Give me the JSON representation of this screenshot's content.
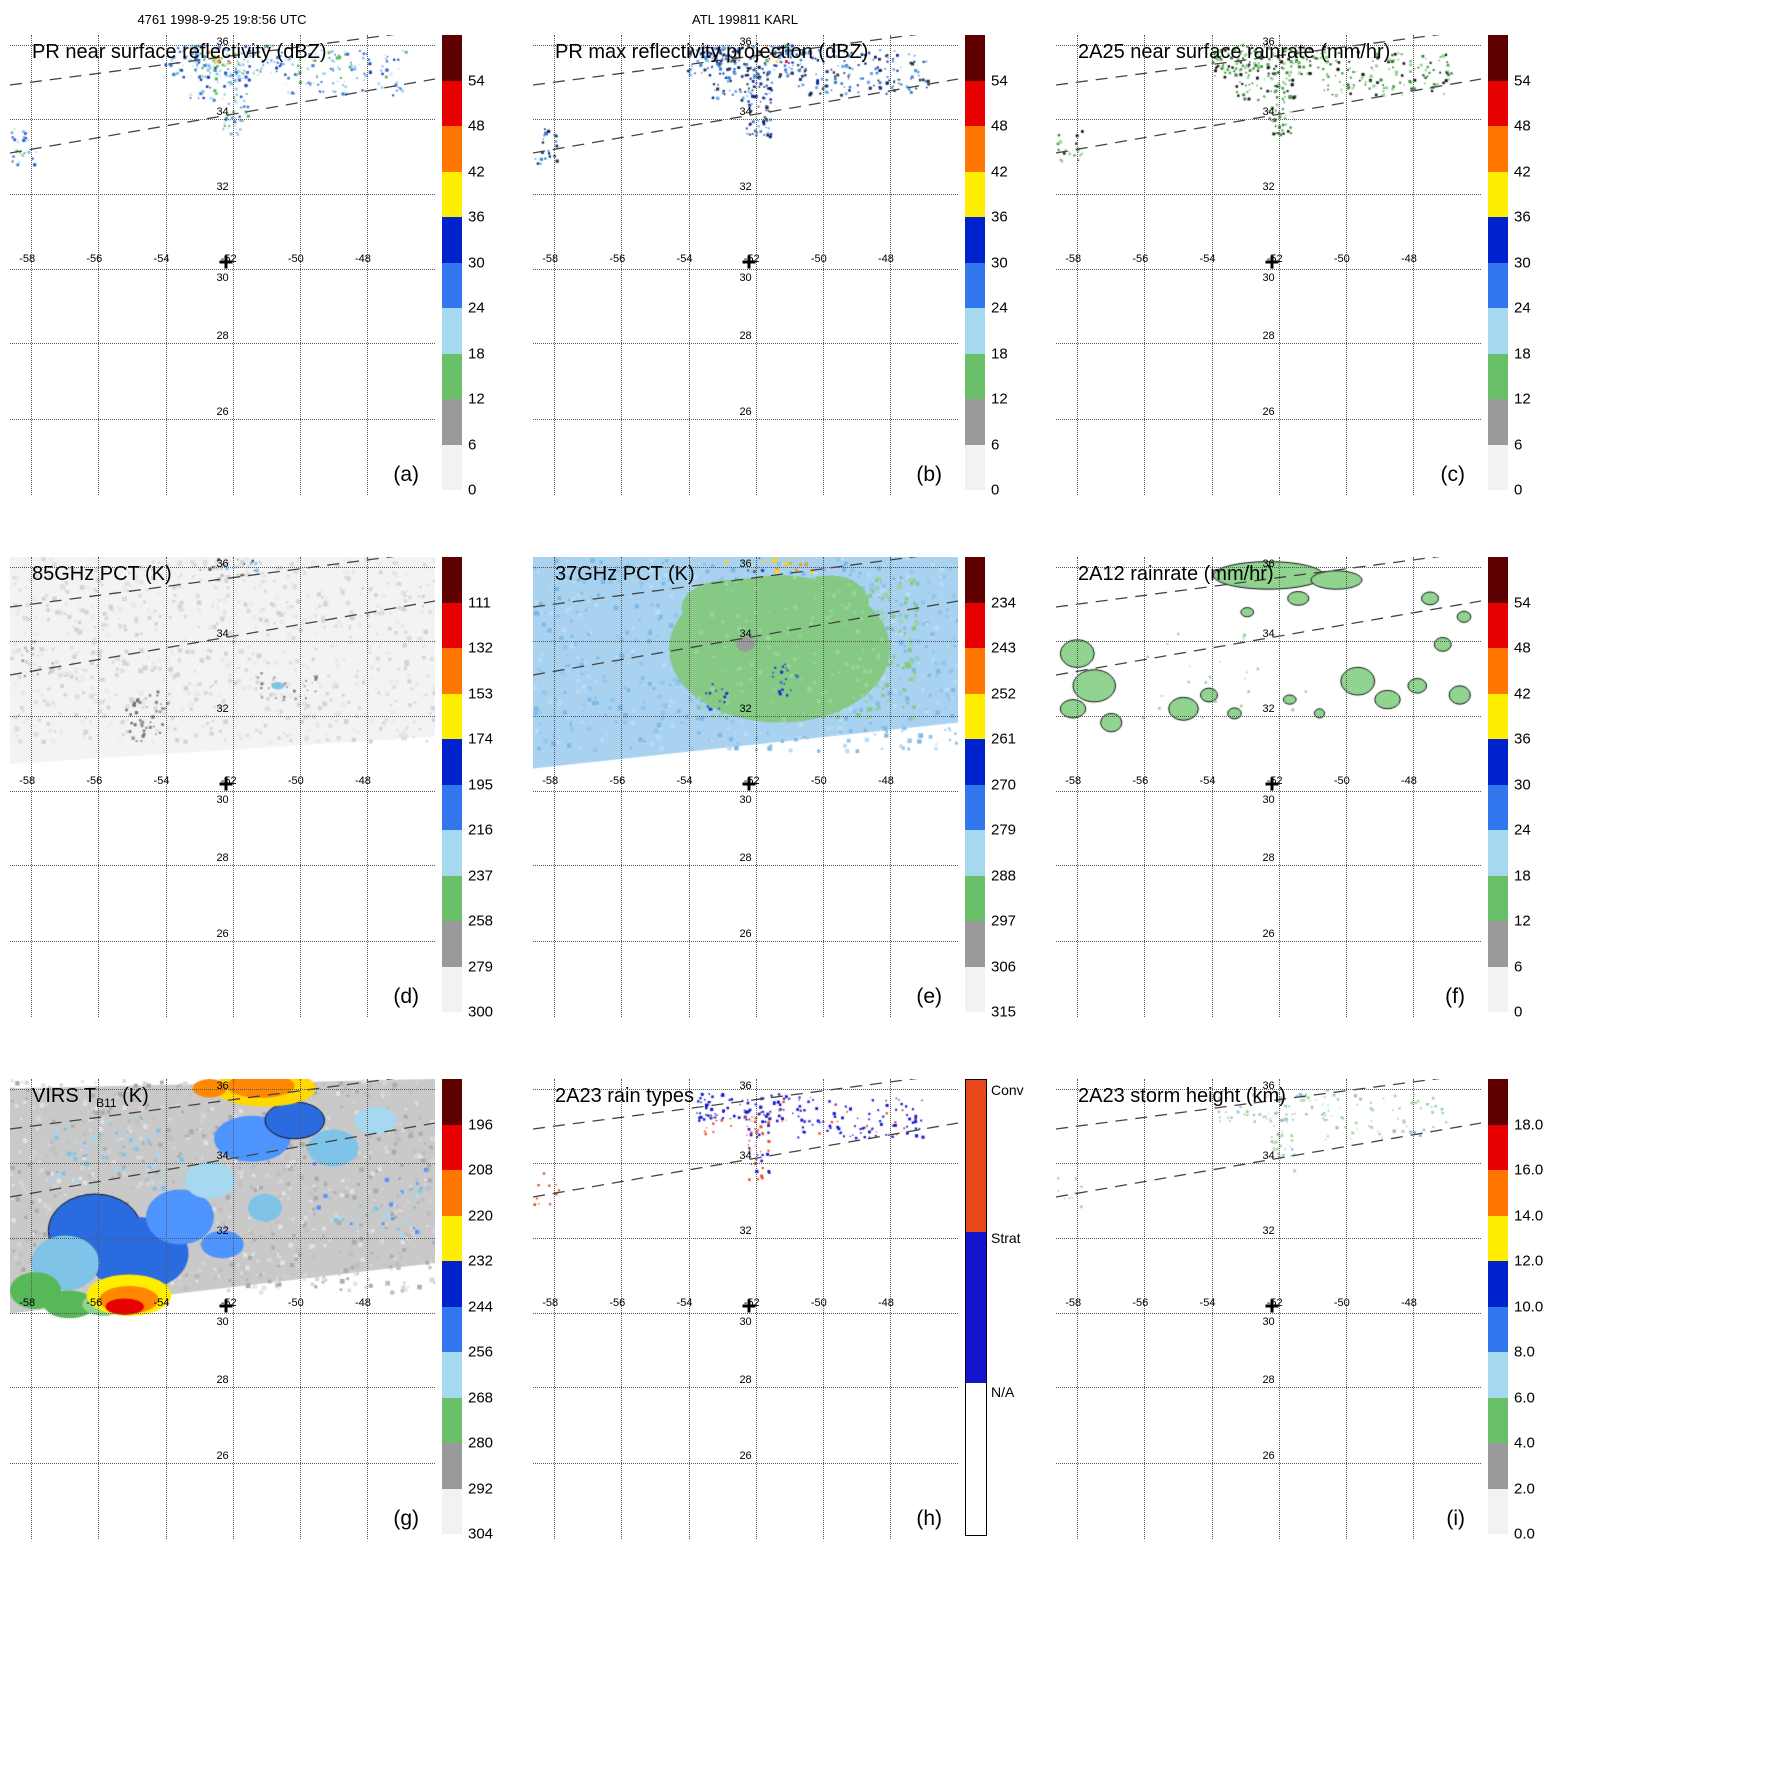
{
  "header": {
    "orbit_line": "4761 1998-9-25 19:8:56 UTC",
    "storm_line": "ATL 199811 KARL"
  },
  "figure": {
    "lon_labels": [
      "-58",
      "-56",
      "-54",
      "-52",
      "-50",
      "-48"
    ],
    "lat_labels": [
      "36",
      "34",
      "32",
      "30",
      "28",
      "26"
    ]
  },
  "chart_data": {
    "type": "heatmap",
    "layout": "3x3 satellite map panels with vertical colorbars",
    "lon_ticks": [
      -58,
      -56,
      -54,
      -52,
      -50,
      -48
    ],
    "lat_ticks": [
      36,
      34,
      32,
      30,
      28,
      26
    ],
    "storm_marker": {
      "lon": -52,
      "lat": 30
    },
    "colorbar_palette": [
      "#5f0000",
      "#e60000",
      "#ff7700",
      "#ffee00",
      "#0022cc",
      "#3377ee",
      "#a6d8f0",
      "#6abf69",
      "#9a9a9a",
      "#f2f2f2"
    ],
    "panels": [
      {
        "id": "a",
        "label": "(a)",
        "title": "PR near surface reflectivity (dBZ)",
        "colorbar": {
          "kind": "scale",
          "ticks": [
            "54",
            "48",
            "42",
            "36",
            "30",
            "24",
            "18",
            "12",
            "6",
            "0"
          ]
        }
      },
      {
        "id": "b",
        "label": "(b)",
        "title": "PR max reflectivity projection (dBZ)",
        "colorbar": {
          "kind": "scale",
          "ticks": [
            "54",
            "48",
            "42",
            "36",
            "30",
            "24",
            "18",
            "12",
            "6",
            "0"
          ]
        }
      },
      {
        "id": "c",
        "label": "(c)",
        "title": "2A25 near surface rainrate (mm/hr)",
        "colorbar": {
          "kind": "scale",
          "ticks": [
            "54",
            "48",
            "42",
            "36",
            "30",
            "24",
            "18",
            "12",
            "6",
            "0"
          ]
        }
      },
      {
        "id": "d",
        "label": "(d)",
        "title": "85GHz PCT (K)",
        "colorbar": {
          "kind": "scale",
          "ticks": [
            "111",
            "132",
            "153",
            "174",
            "195",
            "216",
            "237",
            "258",
            "279",
            "300"
          ]
        }
      },
      {
        "id": "e",
        "label": "(e)",
        "title": "37GHz PCT (K)",
        "colorbar": {
          "kind": "scale",
          "ticks": [
            "234",
            "243",
            "252",
            "261",
            "270",
            "279",
            "288",
            "297",
            "306",
            "315"
          ]
        }
      },
      {
        "id": "f",
        "label": "(f)",
        "title": "2A12 rainrate (mm/hr)",
        "colorbar": {
          "kind": "scale",
          "ticks": [
            "54",
            "48",
            "42",
            "36",
            "30",
            "24",
            "18",
            "12",
            "6",
            "0"
          ]
        }
      },
      {
        "id": "g",
        "label": "(g)",
        "title": "VIRS TB11 (K)",
        "title_parts": {
          "pre": "VIRS T",
          "sub": "B11",
          "post": " (K)"
        },
        "colorbar": {
          "kind": "scale",
          "ticks": [
            "196",
            "208",
            "220",
            "232",
            "244",
            "256",
            "268",
            "280",
            "292",
            "304"
          ]
        }
      },
      {
        "id": "h",
        "label": "(h)",
        "title": "2A23 rain types",
        "colorbar": {
          "kind": "categories",
          "categories": [
            "Conv",
            "Strat",
            "N/A"
          ],
          "colors": [
            "#e8491d",
            "#1414cc",
            "#ffffff"
          ]
        }
      },
      {
        "id": "i",
        "label": "(i)",
        "title": "2A23 storm height (km)",
        "colorbar": {
          "kind": "scale",
          "ticks": [
            "18.0",
            "16.0",
            "14.0",
            "12.0",
            "10.0",
            "8.0",
            "6.0",
            "4.0",
            "2.0",
            "0.0"
          ]
        }
      }
    ]
  }
}
